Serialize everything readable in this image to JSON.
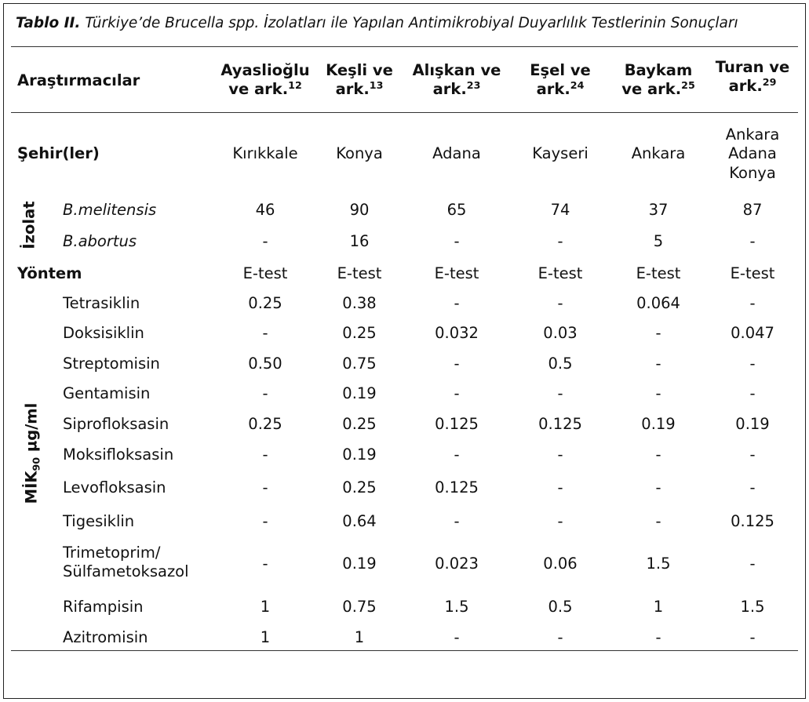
{
  "caption": {
    "label": "Tablo II.",
    "text": "Türkiye’de Brucella spp. İzolatları ile Yapılan Antimikrobiyal Duyarlılık Testlerinin Sonuçları"
  },
  "header": {
    "first_col": "Araştırmacılar",
    "authors": [
      {
        "line1": "Ayaslioğlu",
        "line2": "ve ark.",
        "ref": "12"
      },
      {
        "line1": "Keşli ve",
        "line2": "ark.",
        "ref": "13"
      },
      {
        "line1": "Alışkan ve",
        "line2": "ark.",
        "ref": "23"
      },
      {
        "line1": "Eşel ve",
        "line2": "ark.",
        "ref": "24"
      },
      {
        "line1": "Baykam",
        "line2": "ve ark.",
        "ref": "25"
      },
      {
        "line1": "Turan ve",
        "line2": "ark.",
        "ref": "29"
      }
    ]
  },
  "cities": {
    "label": "Şehir(ler)",
    "values": [
      "Kırıkkale",
      "Konya",
      "Adana",
      "Kayseri",
      "Ankara",
      [
        "Ankara",
        "Adana",
        "Konya"
      ]
    ]
  },
  "isolates": {
    "group_label": "İzolat",
    "rows": [
      {
        "name": "B.melitensis",
        "values": [
          "46",
          "90",
          "65",
          "74",
          "37",
          "87"
        ]
      },
      {
        "name": "B.abortus",
        "values": [
          "-",
          "16",
          "-",
          "-",
          "5",
          "-"
        ]
      }
    ]
  },
  "method": {
    "label": "Yöntem",
    "values": [
      "E-test",
      "E-test",
      "E-test",
      "E-test",
      "E-test",
      "E-test"
    ]
  },
  "mic": {
    "group_label_main": "MİK",
    "group_label_sub": "90",
    "group_label_unit": " µg/ml",
    "rows": [
      {
        "name": "Tetrasiklin",
        "values": [
          "0.25",
          "0.38",
          "-",
          "-",
          "0.064",
          "-"
        ]
      },
      {
        "name": "Doksisiklin",
        "values": [
          "-",
          "0.25",
          "0.032",
          "0.03",
          "-",
          "0.047"
        ]
      },
      {
        "name": "Streptomisin",
        "values": [
          "0.50",
          "0.75",
          "-",
          "0.5",
          "-",
          "-"
        ]
      },
      {
        "name": "Gentamisin",
        "values": [
          "-",
          "0.19",
          "-",
          "-",
          "-",
          "-"
        ]
      },
      {
        "name": "Siprofloksasin",
        "values": [
          "0.25",
          "0.25",
          "0.125",
          "0.125",
          "0.19",
          "0.19"
        ]
      },
      {
        "name": "Moksifloksasin",
        "values": [
          "-",
          "0.19",
          "-",
          "-",
          "-",
          "-"
        ]
      },
      {
        "name": "Levofloksasin",
        "values": [
          "-",
          "0.25",
          "0.125",
          "-",
          "-",
          "-"
        ]
      },
      {
        "name": "Tigesiklin",
        "values": [
          "-",
          "0.64",
          "-",
          "-",
          "-",
          "0.125"
        ]
      },
      {
        "name": "Trimetoprim/\nSülfametoksazol",
        "values": [
          "-",
          "0.19",
          "0.023",
          "0.06",
          "1.5",
          "-"
        ]
      },
      {
        "name": "Rifampisin",
        "values": [
          "1",
          "0.75",
          "1.5",
          "0.5",
          "1",
          "1.5"
        ]
      },
      {
        "name": "Azitromisin",
        "values": [
          "1",
          "1",
          "-",
          "-",
          "-",
          "-"
        ]
      }
    ]
  }
}
